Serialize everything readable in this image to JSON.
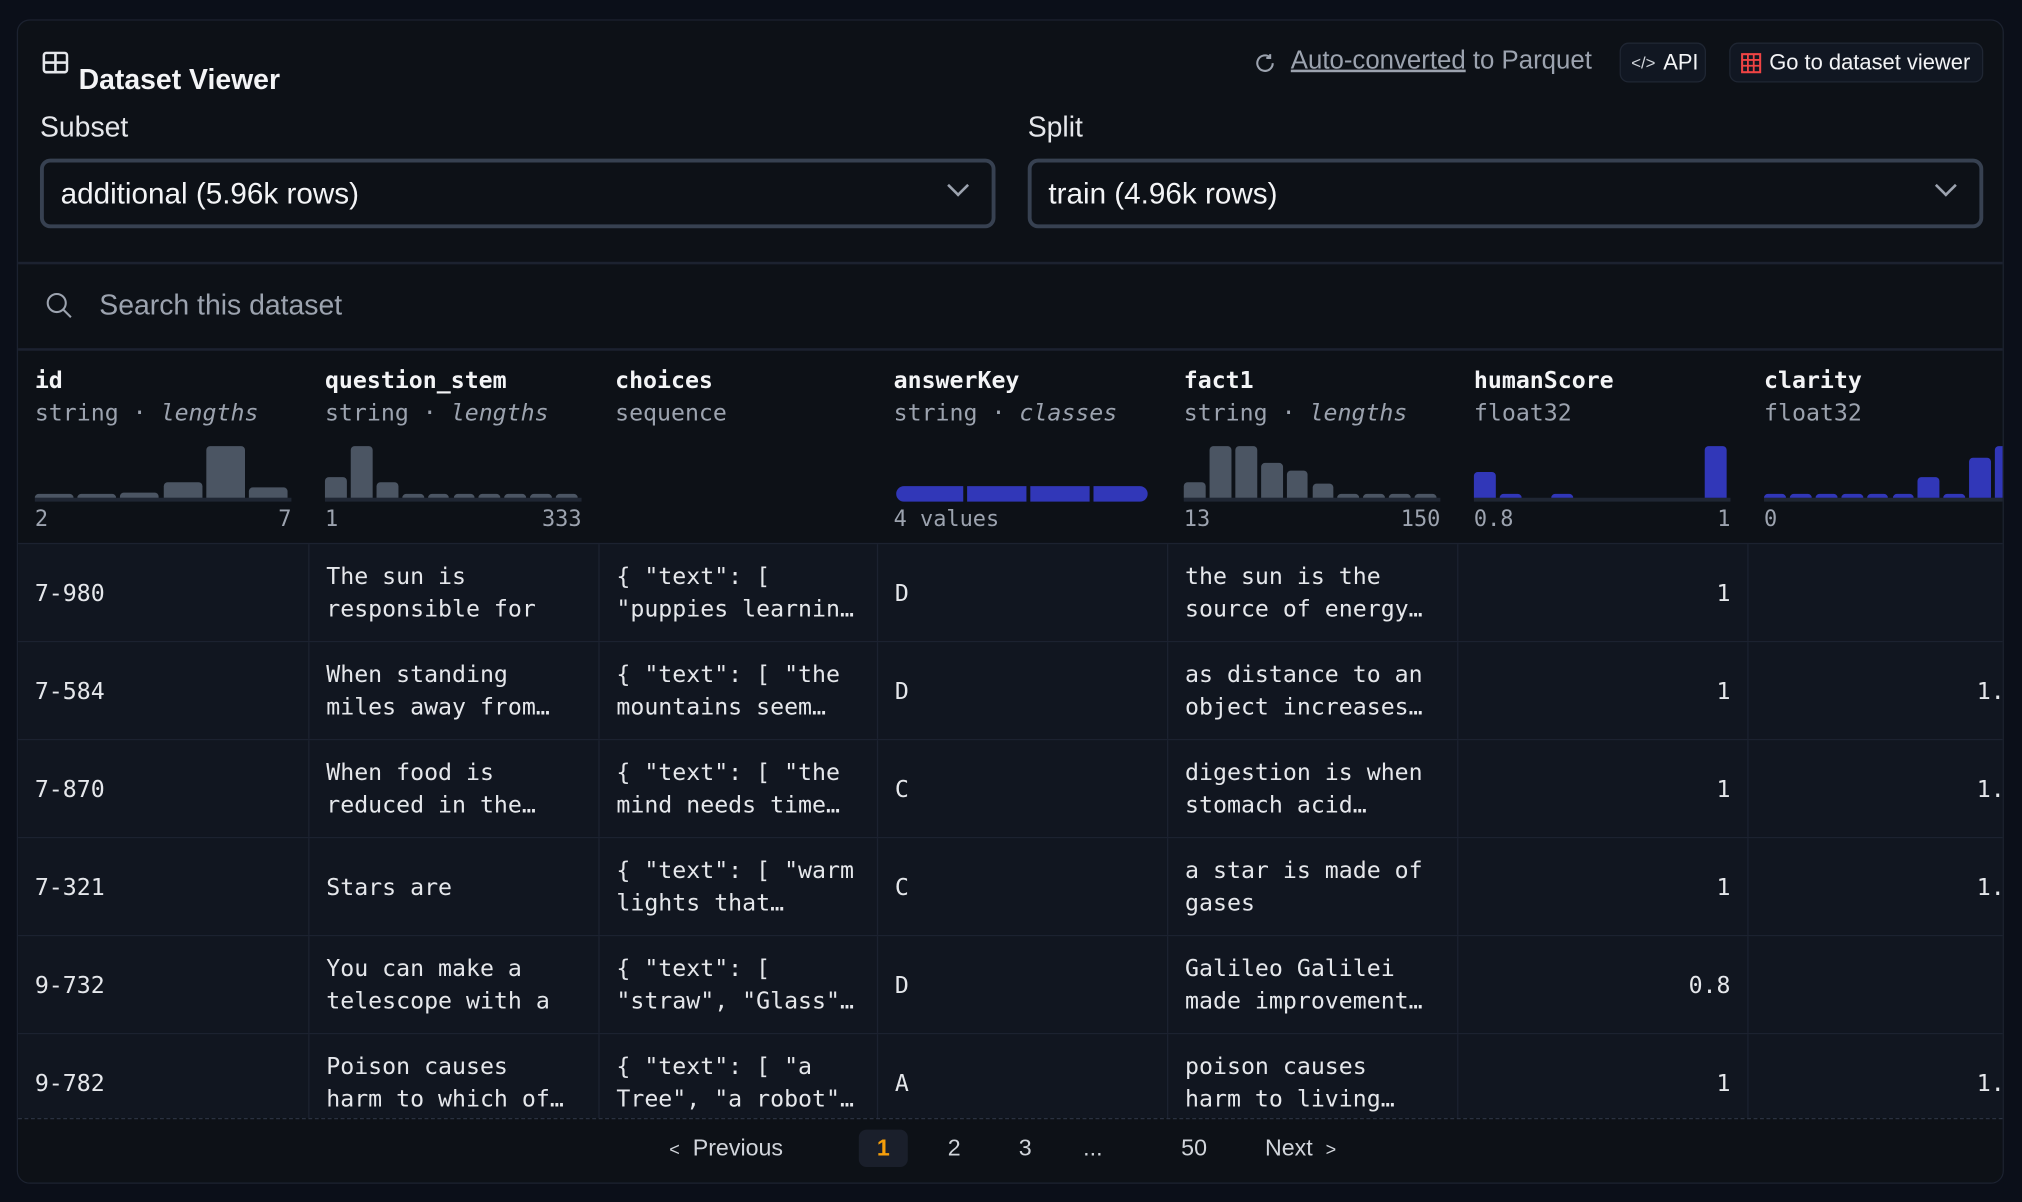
{
  "header": {
    "title": "Dataset Viewer",
    "auto_converted_link": "Auto-converted",
    "auto_converted_suffix": " to Parquet",
    "api_label": "API",
    "go_label": "Go to dataset viewer"
  },
  "subset": {
    "label": "Subset",
    "value": "additional (5.96k rows)"
  },
  "split": {
    "label": "Split",
    "value": "train (4.96k rows)"
  },
  "search": {
    "placeholder": "Search this dataset"
  },
  "colors": {
    "bar_gray": "#4b5563",
    "bar_blue": "#3137b8",
    "accent_orange": "#f59e0b",
    "page_active_bg": "#1a1f2b"
  },
  "columns": [
    {
      "name": "id",
      "type": "string",
      "stat": "lengths",
      "hist": [
        2,
        3,
        4,
        12,
        40,
        8
      ],
      "min": "2",
      "max": "7",
      "color": "gray"
    },
    {
      "name": "question_stem",
      "type": "string",
      "stat": "lengths",
      "hist": [
        16,
        40,
        12,
        2,
        1,
        1,
        1,
        1,
        1,
        1
      ],
      "min": "1",
      "max": "333",
      "color": "gray"
    },
    {
      "name": "choices",
      "type": "sequence",
      "stat": "",
      "hist": [],
      "min": "",
      "max": "",
      "color": "gray"
    },
    {
      "name": "answerKey",
      "type": "string",
      "stat": "classes",
      "classes": [
        52,
        46,
        46,
        42
      ],
      "min": "4 values",
      "max": "",
      "color": "blue"
    },
    {
      "name": "fact1",
      "type": "string",
      "stat": "lengths",
      "hist": [
        12,
        40,
        40,
        27,
        21,
        11,
        3,
        1,
        1,
        1
      ],
      "min": "13",
      "max": "150",
      "color": "gray"
    },
    {
      "name": "humanScore",
      "type": "float32",
      "stat": "",
      "hist": [
        22,
        1,
        0,
        1,
        0,
        0,
        0,
        0,
        0,
        45
      ],
      "min": "0.8",
      "max": "1",
      "color": "blue"
    },
    {
      "name": "clarity",
      "type": "float32",
      "stat": "",
      "hist": [
        1,
        1,
        1,
        1,
        2,
        3,
        18,
        1,
        35,
        45
      ],
      "min": "0",
      "max": "",
      "color": "blue"
    }
  ],
  "rows": [
    [
      "7-980",
      "The sun is\nresponsible for",
      "{ \"text\": [\n\"puppies learnin…",
      "D",
      "the sun is the\nsource of energy…",
      "1",
      ""
    ],
    [
      "7-584",
      "When standing\nmiles away from…",
      "{ \"text\": [ \"the\nmountains seem…",
      "D",
      "as distance to an\nobject increases…",
      "1",
      "1."
    ],
    [
      "7-870",
      "When food is\nreduced in the…",
      "{ \"text\": [ \"the\nmind needs time…",
      "C",
      "digestion is when\nstomach acid…",
      "1",
      "1."
    ],
    [
      "7-321",
      "Stars are",
      "{ \"text\": [ \"warm\nlights that…",
      "C",
      "a star is made of\ngases",
      "1",
      "1."
    ],
    [
      "9-732",
      "You can make a\ntelescope with a",
      "{ \"text\": [\n\"straw\", \"Glass\"…",
      "D",
      "Galileo Galilei\nmade improvement…",
      "0.8",
      ""
    ],
    [
      "9-782",
      "Poison causes\nharm to which of…",
      "{ \"text\": [ \"a\nTree\", \"a robot\"…",
      "A",
      "poison causes\nharm to living…",
      "1",
      "1."
    ]
  ],
  "pagination": {
    "previous": "Previous",
    "pages": [
      "1",
      "2",
      "3",
      "...",
      "50"
    ],
    "current": "1",
    "next": "Next"
  }
}
